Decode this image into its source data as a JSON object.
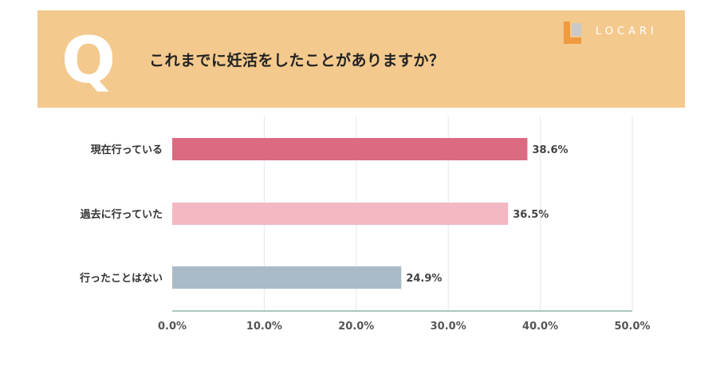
{
  "header": {
    "q_letter": "Q",
    "question": "これまでに妊活をしたことがありますか？",
    "brand": "LOCARI"
  },
  "colors": {
    "banner": "#f3c98d",
    "q_mark": "#ffffff",
    "logo_orange": "#f09a3e",
    "logo_gray": "#c9c9c9",
    "grid": "#e5e5e5",
    "axis": "#8fb5ae"
  },
  "chart_data": {
    "type": "bar",
    "orientation": "horizontal",
    "categories": [
      "現在行っている",
      "過去に行っていた",
      "行ったことはない"
    ],
    "values": [
      38.6,
      36.5,
      24.9
    ],
    "value_labels": [
      "38.6%",
      "36.5%",
      "24.9%"
    ],
    "colors": [
      "#dc6a80",
      "#f4b8c3",
      "#a9bbc8"
    ],
    "xlim": [
      0,
      50
    ],
    "xticks": [
      0,
      10,
      20,
      30,
      40,
      50
    ],
    "xtick_labels": [
      "0.0%",
      "10.0%",
      "20.0%",
      "30.0%",
      "40.0%",
      "50.0%"
    ],
    "grid": true,
    "title": "",
    "xlabel": "",
    "ylabel": ""
  }
}
